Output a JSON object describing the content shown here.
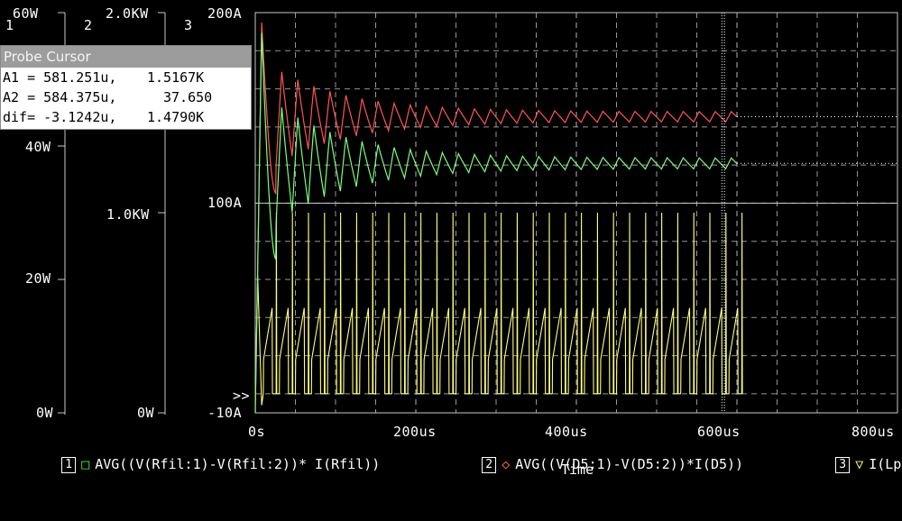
{
  "window": {
    "plot_numbers": [
      "1",
      "2",
      "3"
    ]
  },
  "axes": {
    "axis1": {
      "unit_label": "60W",
      "ticks": [
        "40W",
        "20W",
        "0W"
      ]
    },
    "axis2": {
      "unit_label": "2.0KW",
      "ticks": [
        "1.0KW",
        "0W"
      ]
    },
    "axis3": {
      "ticks": [
        "200A",
        "100A",
        "-10A"
      ]
    },
    "x": {
      "ticks": [
        "0s",
        "200us",
        "400us",
        "600us",
        "800us"
      ],
      "label": "Time"
    }
  },
  "probe_cursor": {
    "title": "Probe Cursor",
    "rows": [
      {
        "label": "A1 = 581.251u,",
        "value": "1.5167K"
      },
      {
        "label": "A2 = 584.375u,",
        "value": "37.650"
      },
      {
        "label": "dif= -3.1242u,",
        "value": "1.4790K"
      }
    ]
  },
  "legend": [
    {
      "index": "1",
      "marker": "□",
      "text": "AVG((V(Rfil:1)-V(Rfil:2))* I(Rfil))",
      "color": "#40ff40"
    },
    {
      "index": "2",
      "marker": "◇",
      "text": "AVG((V(D5:1)-V(D5:2))*I(D5))",
      "color": "#ff6060"
    },
    {
      "index": "3",
      "marker": "▽",
      "text": "I(Lp)",
      "color": "#ffff70"
    }
  ],
  "axis_pointer": ">>",
  "colors": {
    "green": "#7cff7c",
    "red": "#ff5555",
    "yellow": "#ffff80",
    "grid": "#c8c8c8",
    "cursor": "#ffffff"
  },
  "chart_data": {
    "type": "line",
    "x_unit": "us",
    "xlim": [
      0,
      800
    ],
    "cursors_us": [
      581.251,
      584.375
    ],
    "series": [
      {
        "name": "AVG((V(Rfil:1)-V(Rfil:2))* I(Rfil))",
        "axis": "axis1",
        "ylim": [
          0,
          60
        ],
        "envelope": {
          "start": 0,
          "peak_x_us": 8,
          "peak": 57,
          "settle": 37.4,
          "osc_amp_initial": 9,
          "osc_amp_final": 0.8,
          "period_us": 20
        }
      },
      {
        "name": "AVG((V(D5:1)-V(D5:2))*I(D5))",
        "axis": "axis2",
        "ylim": [
          0,
          2000
        ],
        "envelope": {
          "start": 0,
          "peak_x_us": 8,
          "peak": 1950,
          "settle": 1480,
          "osc_amp_initial": 240,
          "osc_amp_final": 25,
          "period_us": 20
        }
      },
      {
        "name": "I(Lp)",
        "axis": "axis3",
        "ylim": [
          -10,
          200
        ],
        "pulse_train": {
          "period_us": 20,
          "baseline": 0,
          "ramp_peak": 45,
          "spike_peak": 95
        }
      }
    ]
  }
}
